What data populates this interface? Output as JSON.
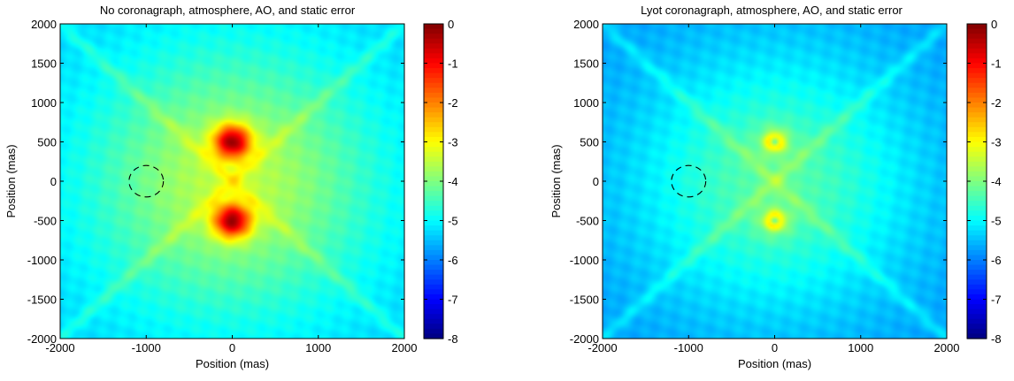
{
  "chart_data": [
    {
      "type": "heatmap",
      "title": "No coronagraph, atmosphere, AO, and static error",
      "xlabel": "Position (mas)",
      "ylabel": "Position (mas)",
      "xlim": [
        -2000,
        2000
      ],
      "ylim": [
        -2000,
        2000
      ],
      "xticks": [
        "-2000",
        "-1000",
        "0",
        "1000",
        "2000"
      ],
      "yticks": [
        "2000",
        "1500",
        "1000",
        "500",
        "0",
        "-500",
        "-1000",
        "-1500",
        "-2000"
      ],
      "colorbar": {
        "range": [
          -8,
          0
        ],
        "ticks": [
          "0",
          "-1",
          "-2",
          "-3",
          "-4",
          "-5",
          "-6",
          "-7",
          "-8"
        ],
        "colormap": "jet"
      },
      "peaks": [
        {
          "x": 0,
          "y": 500,
          "value": -0.2
        },
        {
          "x": 0,
          "y": -500,
          "value": -0.2
        }
      ],
      "background_level": -5.4,
      "halo_level": -3.5,
      "spider_diagonals": true,
      "dashed_circle": {
        "x": -1000,
        "y": 0,
        "radius": 200
      },
      "core_hole": false
    },
    {
      "type": "heatmap",
      "title": "Lyot coronagraph, atmosphere, AO, and static error",
      "xlabel": "Position (mas)",
      "ylabel": "Position (mas)",
      "xlim": [
        -2000,
        2000
      ],
      "ylim": [
        -2000,
        2000
      ],
      "xticks": [
        "-2000",
        "-1000",
        "0",
        "1000",
        "2000"
      ],
      "yticks": [
        "2000",
        "1500",
        "1000",
        "500",
        "0",
        "-500",
        "-1000",
        "-1500",
        "-2000"
      ],
      "colorbar": {
        "range": [
          -8,
          0
        ],
        "ticks": [
          "0",
          "-1",
          "-2",
          "-3",
          "-4",
          "-5",
          "-6",
          "-7",
          "-8"
        ],
        "colormap": "jet"
      },
      "peaks": [
        {
          "x": 0,
          "y": 500,
          "value": -3.1
        },
        {
          "x": 0,
          "y": -500,
          "value": -3.1
        }
      ],
      "background_level": -5.8,
      "halo_level": -4.3,
      "spider_diagonals": true,
      "dashed_circle": {
        "x": -1000,
        "y": 0,
        "radius": 200
      },
      "core_hole": true
    }
  ]
}
